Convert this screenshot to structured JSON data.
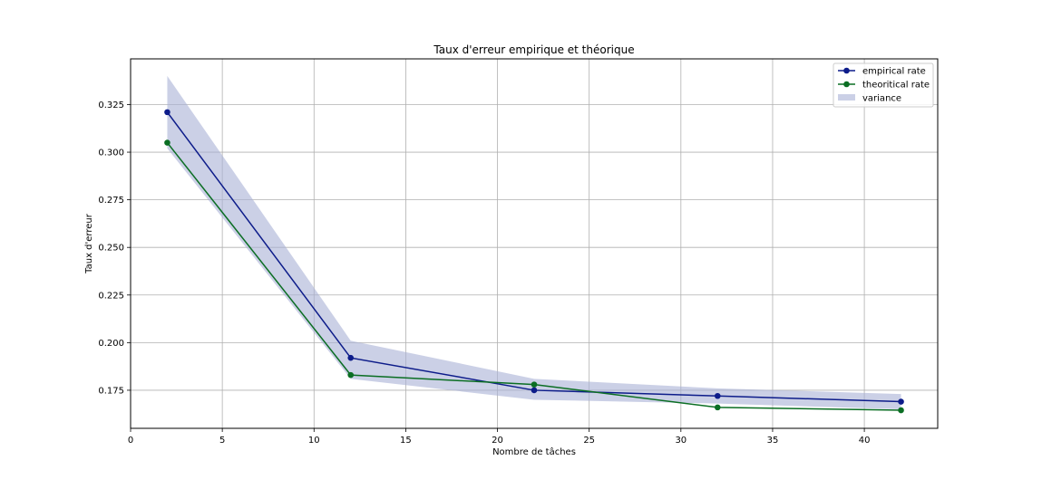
{
  "chart_data": {
    "type": "line",
    "title": "Taux d'erreur empirique et théorique",
    "xlabel": "Nombre de tâches",
    "ylabel": "Taux d'erreur",
    "xlim": [
      0,
      44
    ],
    "ylim": [
      0.155,
      0.349
    ],
    "x_ticks": [
      0,
      5,
      10,
      15,
      20,
      25,
      30,
      35,
      40
    ],
    "y_ticks": [
      0.175,
      0.2,
      0.225,
      0.25,
      0.275,
      0.3,
      0.325
    ],
    "y_tick_labels": [
      "0.175",
      "0.200",
      "0.225",
      "0.250",
      "0.275",
      "0.300",
      "0.325"
    ],
    "grid": true,
    "legend_position": "top-right",
    "x": [
      2,
      12,
      22,
      32,
      42
    ],
    "series": [
      {
        "name": "empirical rate",
        "values": [
          0.321,
          0.192,
          0.175,
          0.172,
          0.169
        ],
        "color": "#0d1c8a"
      },
      {
        "name": "theoritical rate",
        "values": [
          0.305,
          0.183,
          0.178,
          0.166,
          0.1645
        ],
        "color": "#0b6e23"
      }
    ],
    "band": {
      "name": "variance",
      "upper": [
        0.34,
        0.201,
        0.181,
        0.176,
        0.173
      ],
      "lower": [
        0.302,
        0.181,
        0.17,
        0.168,
        0.165
      ],
      "color": "#a9b0d6"
    }
  }
}
